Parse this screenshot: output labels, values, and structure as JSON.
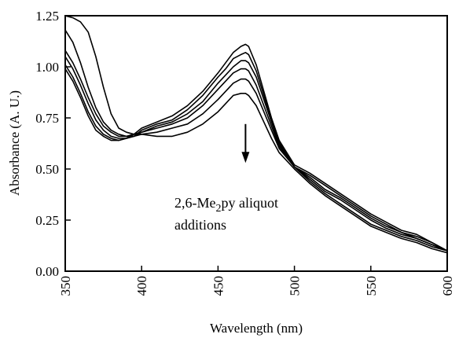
{
  "chart_data": {
    "type": "line",
    "xlabel": "Wavelength (nm)",
    "ylabel": "Absorbance (A. U.)",
    "xlim": [
      350,
      600
    ],
    "ylim": [
      0,
      1.25
    ],
    "xticks": [
      "350",
      "400",
      "450",
      "500",
      "550",
      "600"
    ],
    "xtick_values": [
      350,
      400,
      450,
      500,
      550,
      600
    ],
    "yticks": [
      "0.00",
      "0.25",
      "0.50",
      "0.75",
      "1.00",
      "1.25"
    ],
    "ytick_values": [
      0,
      0.25,
      0.5,
      0.75,
      1.0,
      1.25
    ],
    "grid": false,
    "annotation": {
      "line1_prefix": "2,6-Me",
      "line1_subscript": "2",
      "line1_suffix": "py aliquot",
      "line2": "additions",
      "arrow": "down",
      "arrow_x": 468,
      "arrow_y_from": 0.72,
      "arrow_y_to": 0.53
    },
    "series": [
      {
        "x": [
          350,
          355,
          360,
          365,
          370,
          375,
          380,
          385,
          390,
          395,
          400,
          410,
          420,
          430,
          440,
          450,
          455,
          460,
          465,
          468,
          470,
          475,
          480,
          485,
          490,
          500,
          510,
          520,
          530,
          540,
          550,
          560,
          570,
          580,
          590,
          600
        ],
        "y": [
          1.25,
          1.24,
          1.22,
          1.17,
          1.05,
          0.9,
          0.77,
          0.7,
          0.68,
          0.67,
          0.67,
          0.66,
          0.66,
          0.68,
          0.72,
          0.78,
          0.82,
          0.86,
          0.87,
          0.87,
          0.86,
          0.81,
          0.73,
          0.65,
          0.58,
          0.5,
          0.43,
          0.37,
          0.32,
          0.27,
          0.22,
          0.19,
          0.16,
          0.14,
          0.11,
          0.09
        ]
      },
      {
        "x": [
          350,
          355,
          360,
          365,
          370,
          375,
          380,
          385,
          390,
          395,
          400,
          410,
          420,
          430,
          440,
          450,
          455,
          460,
          465,
          468,
          470,
          475,
          480,
          485,
          490,
          500,
          510,
          520,
          530,
          540,
          550,
          560,
          570,
          580,
          590,
          600
        ],
        "y": [
          1.18,
          1.12,
          1.02,
          0.9,
          0.8,
          0.73,
          0.69,
          0.67,
          0.66,
          0.66,
          0.67,
          0.68,
          0.7,
          0.72,
          0.77,
          0.84,
          0.88,
          0.92,
          0.94,
          0.94,
          0.93,
          0.87,
          0.78,
          0.69,
          0.6,
          0.51,
          0.44,
          0.38,
          0.33,
          0.28,
          0.23,
          0.2,
          0.17,
          0.15,
          0.12,
          0.1
        ]
      },
      {
        "x": [
          350,
          355,
          360,
          365,
          370,
          375,
          380,
          385,
          390,
          395,
          400,
          410,
          420,
          430,
          440,
          450,
          455,
          460,
          465,
          468,
          470,
          475,
          480,
          485,
          490,
          500,
          510,
          520,
          530,
          540,
          550,
          560,
          570,
          580,
          590,
          600
        ],
        "y": [
          1.08,
          1.02,
          0.94,
          0.85,
          0.77,
          0.71,
          0.68,
          0.66,
          0.66,
          0.67,
          0.68,
          0.7,
          0.72,
          0.75,
          0.81,
          0.89,
          0.93,
          0.97,
          0.99,
          0.99,
          0.98,
          0.91,
          0.81,
          0.71,
          0.61,
          0.51,
          0.45,
          0.39,
          0.35,
          0.3,
          0.25,
          0.21,
          0.18,
          0.16,
          0.13,
          0.1
        ]
      },
      {
        "x": [
          350,
          355,
          360,
          365,
          370,
          375,
          380,
          385,
          390,
          395,
          400,
          410,
          420,
          430,
          440,
          450,
          455,
          460,
          465,
          468,
          470,
          475,
          480,
          485,
          490,
          500,
          510,
          520,
          530,
          540,
          550,
          560,
          570,
          580,
          590,
          600
        ],
        "y": [
          1.05,
          0.99,
          0.91,
          0.82,
          0.74,
          0.69,
          0.66,
          0.65,
          0.65,
          0.66,
          0.68,
          0.71,
          0.73,
          0.77,
          0.83,
          0.92,
          0.96,
          1.0,
          1.03,
          1.03,
          1.02,
          0.95,
          0.84,
          0.73,
          0.62,
          0.51,
          0.46,
          0.4,
          0.36,
          0.31,
          0.26,
          0.22,
          0.19,
          0.16,
          0.13,
          0.1
        ]
      },
      {
        "x": [
          350,
          355,
          360,
          365,
          370,
          375,
          380,
          385,
          390,
          395,
          400,
          410,
          420,
          430,
          440,
          450,
          455,
          460,
          465,
          468,
          470,
          475,
          480,
          485,
          490,
          500,
          510,
          520,
          530,
          540,
          550,
          560,
          570,
          580,
          590,
          600
        ],
        "y": [
          1.01,
          0.95,
          0.87,
          0.78,
          0.71,
          0.67,
          0.65,
          0.64,
          0.65,
          0.66,
          0.69,
          0.72,
          0.74,
          0.79,
          0.86,
          0.95,
          0.99,
          1.04,
          1.06,
          1.07,
          1.06,
          0.98,
          0.86,
          0.74,
          0.63,
          0.51,
          0.47,
          0.42,
          0.37,
          0.32,
          0.27,
          0.23,
          0.19,
          0.17,
          0.14,
          0.1
        ]
      },
      {
        "x": [
          350,
          355,
          360,
          365,
          370,
          375,
          380,
          385,
          390,
          395,
          400,
          410,
          420,
          430,
          440,
          450,
          455,
          460,
          465,
          468,
          470,
          475,
          480,
          485,
          490,
          500,
          510,
          520,
          530,
          540,
          550,
          560,
          570,
          580,
          590,
          600
        ],
        "y": [
          0.99,
          0.93,
          0.85,
          0.76,
          0.69,
          0.66,
          0.64,
          0.64,
          0.65,
          0.67,
          0.7,
          0.73,
          0.76,
          0.81,
          0.88,
          0.97,
          1.02,
          1.07,
          1.1,
          1.11,
          1.1,
          1.01,
          0.88,
          0.75,
          0.64,
          0.52,
          0.48,
          0.43,
          0.38,
          0.33,
          0.28,
          0.24,
          0.2,
          0.18,
          0.14,
          0.1
        ]
      }
    ]
  }
}
